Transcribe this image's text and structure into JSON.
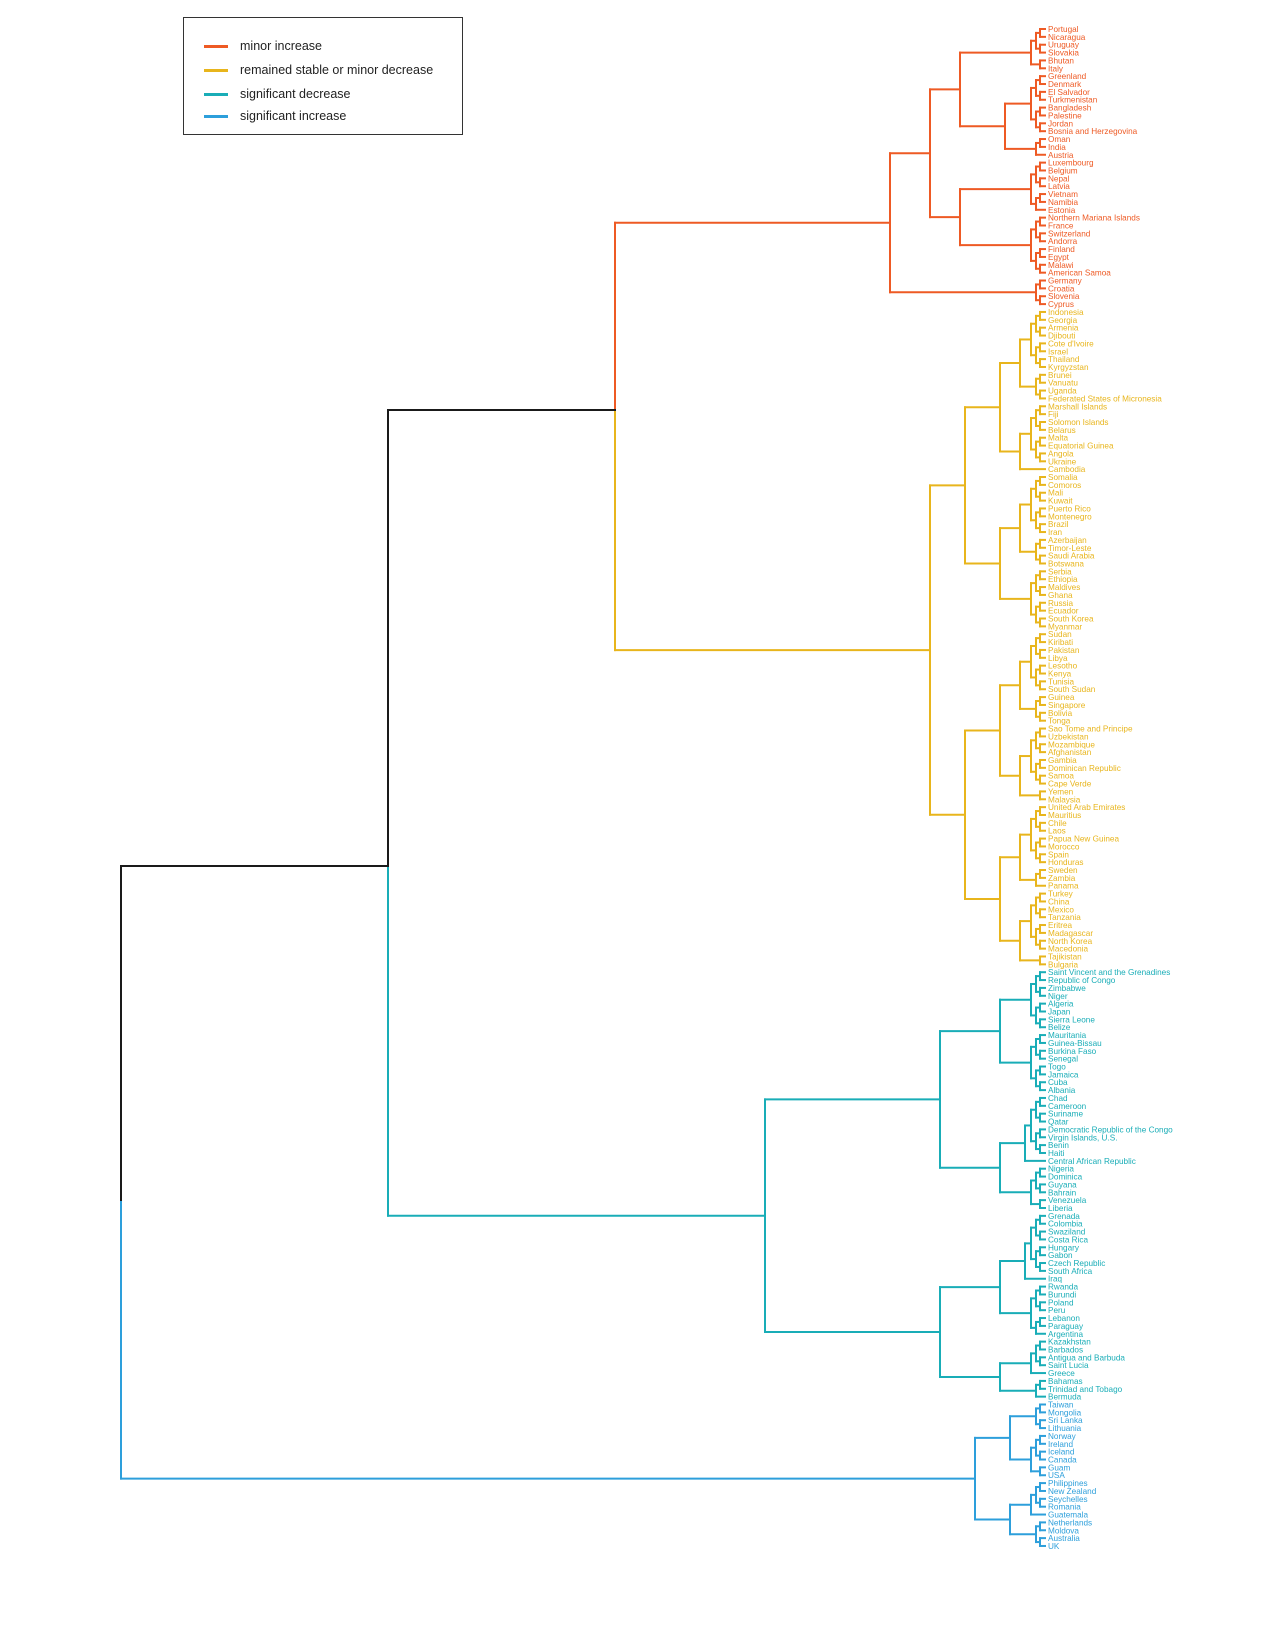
{
  "colors": {
    "root": "#1a1a1a",
    "minor_increase": "#ee5a24",
    "stable": "#e8b51c",
    "sig_decrease": "#19adb7",
    "sig_increase": "#2d9fdb"
  },
  "legend": [
    {
      "label": "minor increase",
      "color": "#ee5a24"
    },
    {
      "label": "remained stable or minor decrease",
      "color": "#e8b51c"
    },
    {
      "label": "significant decrease",
      "color": "#19adb7"
    },
    {
      "label": "significant increase",
      "color": "#2d9fdb"
    }
  ],
  "clusters": [
    {
      "name": "minor increase",
      "color": "#ee5a24",
      "leaves": [
        "Portugal",
        "Nicaragua",
        "Uruguay",
        "Slovakia",
        "Bhutan",
        "Italy",
        "Greenland",
        "Denmark",
        "El Salvador",
        "Turkmenistan",
        "Bangladesh",
        "Palestine",
        "Jordan",
        "Bosnia and Herzegovina",
        "Oman",
        "India",
        "Austria",
        "Luxembourg",
        "Belgium",
        "Nepal",
        "Latvia",
        "Vietnam",
        "Namibia",
        "Estonia",
        "Northern Mariana Islands",
        "France",
        "Switzerland",
        "Andorra",
        "Finland",
        "Egypt",
        "Malawi",
        "American Samoa",
        "Germany",
        "Croatia",
        "Slovenia",
        "Cyprus"
      ]
    },
    {
      "name": "remained stable or minor decrease",
      "color": "#e8b51c",
      "leaves": [
        "Indonesia",
        "Georgia",
        "Armenia",
        "Djibouti",
        "Cote d'Ivoire",
        "Israel",
        "Thailand",
        "Kyrgyzstan",
        "Brunei",
        "Vanuatu",
        "Uganda",
        "Federated States of Micronesia",
        "Marshall Islands",
        "Fiji",
        "Solomon Islands",
        "Belarus",
        "Malta",
        "Equatorial Guinea",
        "Angola",
        "Ukraine",
        "Cambodia",
        "Somalia",
        "Comoros",
        "Mali",
        "Kuwait",
        "Puerto Rico",
        "Montenegro",
        "Brazil",
        "Iran",
        "Azerbaijan",
        "Timor-Leste",
        "Saudi Arabia",
        "Botswana",
        "Serbia",
        "Ethiopia",
        "Maldives",
        "Ghana",
        "Russia",
        "Ecuador",
        "South Korea",
        "Myanmar",
        "Sudan",
        "Kiribati",
        "Pakistan",
        "Libya",
        "Lesotho",
        "Kenya",
        "Tunisia",
        "South Sudan",
        "Guinea",
        "Singapore",
        "Bolivia",
        "Tonga",
        "Sao Tome and Principe",
        "Uzbekistan",
        "Mozambique",
        "Afghanistan",
        "Gambia",
        "Dominican Republic",
        "Samoa",
        "Cape Verde",
        "Yemen",
        "Malaysia",
        "United Arab Emirates",
        "Mauritius",
        "Chile",
        "Laos",
        "Papua New Guinea",
        "Morocco",
        "Spain",
        "Honduras",
        "Sweden",
        "Zambia",
        "Panama",
        "Turkey",
        "China",
        "Mexico",
        "Tanzania",
        "Eritrea",
        "Madagascar",
        "North Korea",
        "Macedonia",
        "Tajikistan",
        "Bulgaria"
      ]
    },
    {
      "name": "significant decrease",
      "color": "#19adb7",
      "leaves": [
        "Saint Vincent and the Grenadines",
        "Republic of Congo",
        "Zimbabwe",
        "Niger",
        "Algeria",
        "Japan",
        "Sierra Leone",
        "Belize",
        "Mauritania",
        "Guinea-Bissau",
        "Burkina Faso",
        "Senegal",
        "Togo",
        "Jamaica",
        "Cuba",
        "Albania",
        "Chad",
        "Cameroon",
        "Suriname",
        "Qatar",
        "Democratic Republic of the Congo",
        "Virgin Islands, U.S.",
        "Benin",
        "Haiti",
        "Central African Republic",
        "Nigeria",
        "Dominica",
        "Guyana",
        "Bahrain",
        "Venezuela",
        "Liberia",
        "Grenada",
        "Colombia",
        "Swaziland",
        "Costa Rica",
        "Hungary",
        "Gabon",
        "Czech Republic",
        "South Africa",
        "Iraq",
        "Rwanda",
        "Burundi",
        "Poland",
        "Peru",
        "Lebanon",
        "Paraguay",
        "Argentina",
        "Kazakhstan",
        "Barbados",
        "Antigua and Barbuda",
        "Saint Lucia",
        "Greece",
        "Bahamas",
        "Trinidad and Tobago",
        "Bermuda"
      ]
    },
    {
      "name": "significant increase",
      "color": "#2d9fdb",
      "leaves": [
        "Taiwan",
        "Mongolia",
        "Sri Lanka",
        "Lithuania",
        "Norway",
        "Ireland",
        "Iceland",
        "Canada",
        "Guam",
        "USA",
        "Philippines",
        "New Zealand",
        "Seychelles",
        "Romania",
        "Guatemala",
        "Netherlands",
        "Moldova",
        "Australia",
        "UK"
      ]
    }
  ]
}
